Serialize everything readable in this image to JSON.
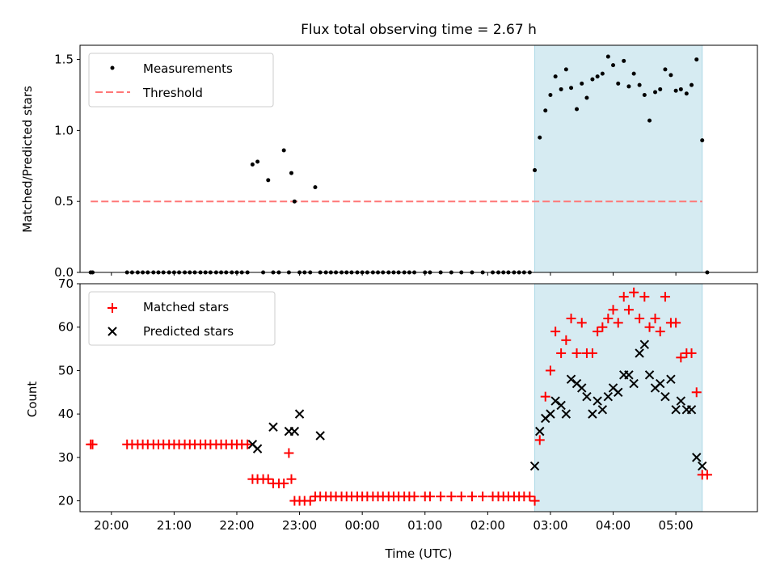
{
  "figure": {
    "title": "Flux total observing time = 2.67 h",
    "xlabel": "Time (UTC)",
    "x_ticks": [
      "20:00",
      "21:00",
      "22:00",
      "23:00",
      "00:00",
      "01:00",
      "02:00",
      "03:00",
      "04:00",
      "05:00"
    ]
  },
  "colors": {
    "band": "#add8e6",
    "threshold": "#ff7777",
    "matched": "#ff0000",
    "predicted": "#000000",
    "measurement": "#000000"
  },
  "chart_data": [
    {
      "type": "scatter",
      "ylabel": "Matched/Predicted stars",
      "ylim": [
        0,
        1.6
      ],
      "y_ticks": [
        "0.0",
        "0.5",
        "1.0",
        "1.5"
      ],
      "x_unit": "hours after 20:00 UTC",
      "xlim": [
        -0.5,
        10.3
      ],
      "legend": {
        "position": "upper-left",
        "entries": [
          "Measurements",
          "Threshold"
        ]
      },
      "observing_window": {
        "start": 6.75,
        "end": 9.42
      },
      "threshold": {
        "value": 0.5,
        "x_start": -0.33,
        "x_end": 9.42
      },
      "series": [
        {
          "name": "Measurements",
          "x": [
            -0.33,
            -0.3,
            0.25,
            0.33,
            0.42,
            0.5,
            0.58,
            0.67,
            0.75,
            0.83,
            0.92,
            1.0,
            1.08,
            1.17,
            1.25,
            1.33,
            1.42,
            1.5,
            1.58,
            1.67,
            1.75,
            1.83,
            1.92,
            2.0,
            2.08,
            2.17,
            2.25,
            2.33,
            2.42,
            2.5,
            2.58,
            2.67,
            2.75,
            2.83,
            2.87,
            2.92,
            3.0,
            3.08,
            3.17,
            3.25,
            3.33,
            3.42,
            3.5,
            3.58,
            3.67,
            3.75,
            3.83,
            3.92,
            4.0,
            4.08,
            4.17,
            4.25,
            4.33,
            4.42,
            4.5,
            4.58,
            4.67,
            4.75,
            4.83,
            5.0,
            5.08,
            5.25,
            5.42,
            5.58,
            5.75,
            5.92,
            6.08,
            6.17,
            6.25,
            6.33,
            6.42,
            6.5,
            6.58,
            6.67,
            6.75,
            6.83,
            6.92,
            7.0,
            7.08,
            7.17,
            7.25,
            7.33,
            7.42,
            7.5,
            7.58,
            7.67,
            7.75,
            7.83,
            7.92,
            8.0,
            8.08,
            8.17,
            8.25,
            8.33,
            8.42,
            8.5,
            8.58,
            8.67,
            8.75,
            8.83,
            8.92,
            9.0,
            9.08,
            9.17,
            9.25,
            9.33,
            9.42,
            9.5
          ],
          "y": [
            0,
            0,
            0,
            0,
            0,
            0,
            0,
            0,
            0,
            0,
            0,
            0,
            0,
            0,
            0,
            0,
            0,
            0,
            0,
            0,
            0,
            0,
            0,
            0,
            0,
            0,
            0.76,
            0.78,
            0,
            0.65,
            0,
            0,
            0.86,
            0,
            0.7,
            0.5,
            0,
            0,
            0,
            0.6,
            0,
            0,
            0,
            0,
            0,
            0,
            0,
            0,
            0,
            0,
            0,
            0,
            0,
            0,
            0,
            0,
            0,
            0,
            0,
            0,
            0,
            0,
            0,
            0,
            0,
            0,
            0,
            0,
            0,
            0,
            0,
            0,
            0,
            0,
            0.72,
            0.95,
            1.14,
            1.25,
            1.38,
            1.29,
            1.43,
            1.3,
            1.15,
            1.33,
            1.23,
            1.36,
            1.38,
            1.4,
            1.52,
            1.46,
            1.33,
            1.49,
            1.31,
            1.4,
            1.32,
            1.25,
            1.07,
            1.27,
            1.29,
            1.43,
            1.39,
            1.28,
            1.29,
            1.26,
            1.32,
            1.5,
            0.93,
            0
          ]
        }
      ]
    },
    {
      "type": "scatter",
      "ylabel": "Count",
      "ylim": [
        17.5,
        70
      ],
      "y_ticks": [
        "20",
        "30",
        "40",
        "50",
        "60",
        "70"
      ],
      "x_unit": "hours after 20:00 UTC",
      "xlim": [
        -0.5,
        10.3
      ],
      "legend": {
        "position": "upper-left",
        "entries": [
          "Matched stars",
          "Predicted stars"
        ]
      },
      "observing_window": {
        "start": 6.75,
        "end": 9.42
      },
      "series": [
        {
          "name": "Matched stars",
          "marker": "plus",
          "x": [
            -0.33,
            -0.3,
            0.25,
            0.33,
            0.42,
            0.5,
            0.58,
            0.67,
            0.75,
            0.83,
            0.92,
            1.0,
            1.08,
            1.17,
            1.25,
            1.33,
            1.42,
            1.5,
            1.58,
            1.67,
            1.75,
            1.83,
            1.92,
            2.0,
            2.08,
            2.17,
            2.25,
            2.33,
            2.42,
            2.5,
            2.58,
            2.67,
            2.75,
            2.83,
            2.87,
            2.92,
            3.0,
            3.08,
            3.17,
            3.25,
            3.33,
            3.42,
            3.5,
            3.58,
            3.67,
            3.75,
            3.83,
            3.92,
            4.0,
            4.08,
            4.17,
            4.25,
            4.33,
            4.42,
            4.5,
            4.58,
            4.67,
            4.75,
            4.83,
            5.0,
            5.08,
            5.25,
            5.42,
            5.58,
            5.75,
            5.92,
            6.08,
            6.17,
            6.25,
            6.33,
            6.42,
            6.5,
            6.58,
            6.67,
            6.75,
            6.83,
            6.92,
            7.0,
            7.08,
            7.17,
            7.25,
            7.33,
            7.42,
            7.5,
            7.58,
            7.67,
            7.75,
            7.83,
            7.92,
            8.0,
            8.08,
            8.17,
            8.25,
            8.33,
            8.42,
            8.5,
            8.58,
            8.67,
            8.75,
            8.83,
            8.92,
            9.0,
            9.08,
            9.17,
            9.25,
            9.33,
            9.42,
            9.5
          ],
          "y": [
            33,
            33,
            33,
            33,
            33,
            33,
            33,
            33,
            33,
            33,
            33,
            33,
            33,
            33,
            33,
            33,
            33,
            33,
            33,
            33,
            33,
            33,
            33,
            33,
            33,
            33,
            25,
            25,
            25,
            25,
            24,
            24,
            24,
            31,
            25,
            20,
            20,
            20,
            20,
            21,
            21,
            21,
            21,
            21,
            21,
            21,
            21,
            21,
            21,
            21,
            21,
            21,
            21,
            21,
            21,
            21,
            21,
            21,
            21,
            21,
            21,
            21,
            21,
            21,
            21,
            21,
            21,
            21,
            21,
            21,
            21,
            21,
            21,
            21,
            20,
            34,
            44,
            50,
            59,
            54,
            57,
            62,
            54,
            61,
            54,
            54,
            59,
            60,
            62,
            64,
            61,
            67,
            64,
            68,
            62,
            67,
            60,
            62,
            59,
            67,
            61,
            61,
            53,
            54,
            54,
            45,
            26,
            26
          ]
        },
        {
          "name": "Predicted stars",
          "marker": "x",
          "x": [
            2.25,
            2.33,
            2.58,
            2.83,
            2.92,
            3.0,
            3.33,
            6.75,
            6.83,
            6.92,
            7.0,
            7.08,
            7.17,
            7.25,
            7.33,
            7.42,
            7.5,
            7.58,
            7.67,
            7.75,
            7.83,
            7.92,
            8.0,
            8.08,
            8.17,
            8.25,
            8.33,
            8.42,
            8.5,
            8.58,
            8.67,
            8.75,
            8.83,
            8.92,
            9.0,
            9.08,
            9.17,
            9.25,
            9.33,
            9.42
          ],
          "y": [
            33,
            32,
            37,
            36,
            36,
            40,
            35,
            28,
            36,
            39,
            40,
            43,
            42,
            40,
            48,
            47,
            46,
            44,
            40,
            43,
            41,
            44,
            46,
            45,
            49,
            49,
            47,
            54,
            56,
            49,
            46,
            47,
            44,
            48,
            41,
            43,
            41,
            41,
            30,
            28
          ]
        }
      ]
    }
  ]
}
